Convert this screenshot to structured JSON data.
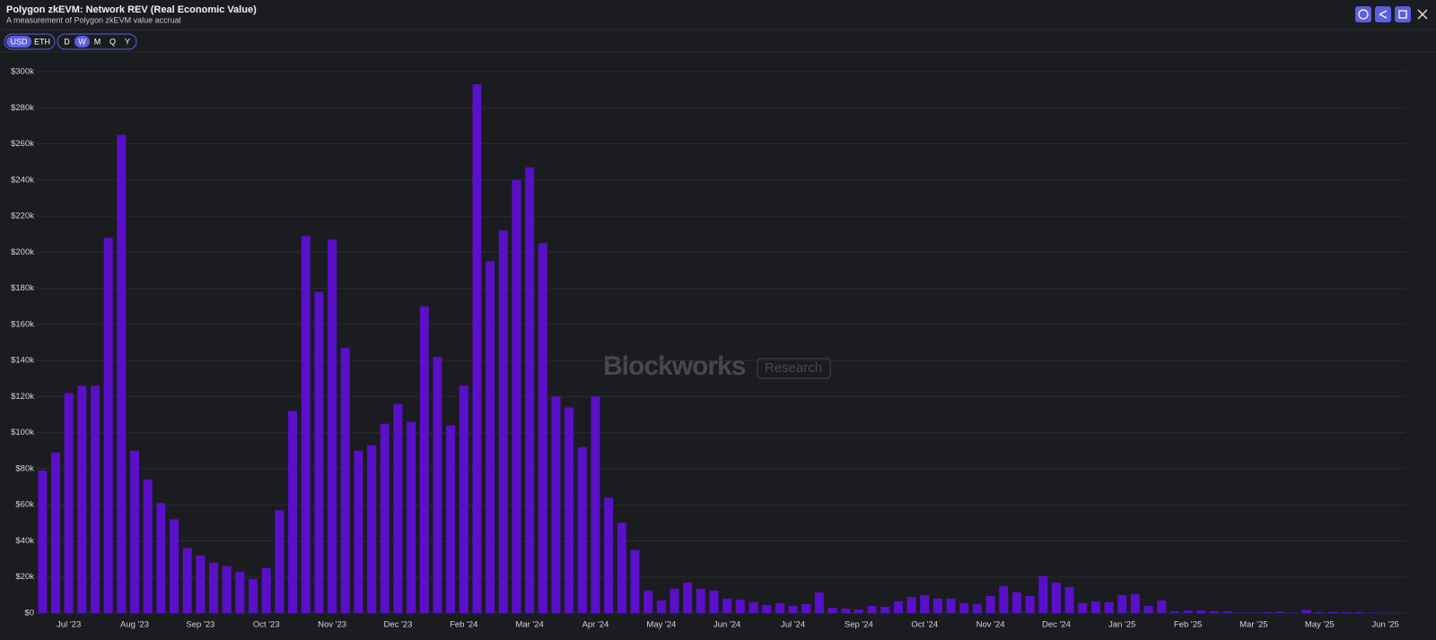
{
  "header": {
    "title": "Polygon zkEVM: Network REV (Real Economic Value)",
    "subtitle": "A measurement of Polygon zkEVM value accrual"
  },
  "controls": {
    "currency": [
      "USD",
      "ETH"
    ],
    "selected_currency": "USD",
    "intervals": [
      "D",
      "W",
      "M",
      "Q",
      "Y"
    ],
    "selected_interval": "W"
  },
  "watermark": {
    "brand": "Blockworks",
    "tag": "Research"
  },
  "chart_data": {
    "type": "bar",
    "color": "#5a0fc8",
    "grid": true,
    "categories": [
      null,
      null,
      "Jul '23",
      null,
      null,
      null,
      null,
      "Aug '23",
      null,
      null,
      null,
      null,
      "Sep '23",
      null,
      null,
      null,
      null,
      "Oct '23",
      null,
      null,
      null,
      null,
      "Nov '23",
      null,
      null,
      null,
      null,
      "Dec '23",
      null,
      null,
      null,
      null,
      "Feb '24",
      null,
      null,
      null,
      null,
      "Mar '24",
      null,
      null,
      null,
      null,
      "Apr '24",
      null,
      null,
      null,
      null,
      "May '24",
      null,
      null,
      null,
      null,
      "Jun '24",
      null,
      null,
      null,
      null,
      "Jul '24",
      null,
      null,
      null,
      null,
      "Sep '24",
      null,
      null,
      null,
      null,
      "Oct '24",
      null,
      null,
      null,
      null,
      "Nov '24",
      null,
      null,
      null,
      null,
      "Dec '24",
      null,
      null,
      null,
      null,
      "Jan '25",
      null,
      null,
      null,
      null,
      "Feb '25",
      null,
      null,
      null,
      null,
      "Mar '25",
      null,
      null,
      null,
      null,
      "May '25",
      null,
      null,
      null,
      null,
      "Jun '25"
    ],
    "values": [
      79000,
      89000,
      122000,
      126000,
      126000,
      208000,
      265000,
      90000,
      74000,
      61000,
      52000,
      36000,
      32000,
      28000,
      26000,
      23000,
      19000,
      25000,
      57000,
      112000,
      209000,
      178000,
      207000,
      147000,
      90000,
      93000,
      105000,
      116000,
      106000,
      170000,
      142000,
      104000,
      126000,
      293000,
      195000,
      212000,
      240000,
      247000,
      205000,
      120000,
      114000,
      92000,
      120000,
      64000,
      50000,
      35000,
      12500,
      7000,
      13500,
      17000,
      13500,
      12500,
      8000,
      7500,
      6000,
      4500,
      5500,
      4000,
      5000,
      11500,
      3000,
      2500,
      2000,
      4000,
      3500,
      6500,
      9000,
      10000,
      8000,
      8000,
      5500,
      5000,
      9500,
      15000,
      11500,
      9500,
      20500,
      17000,
      14500,
      5500,
      6500,
      6000,
      10000,
      10500,
      4000,
      7000,
      1000,
      1500,
      1500,
      1000,
      1000,
      300,
      300,
      500,
      800,
      300,
      1800,
      500,
      800,
      500,
      500,
      300,
      200
    ],
    "ylim": [
      0,
      300000
    ],
    "yticks": [
      {
        "value": 0,
        "label": "$0"
      },
      {
        "value": 20000,
        "label": "$20k"
      },
      {
        "value": 40000,
        "label": "$40k"
      },
      {
        "value": 60000,
        "label": "$60k"
      },
      {
        "value": 80000,
        "label": "$80k"
      },
      {
        "value": 100000,
        "label": "$100k"
      },
      {
        "value": 120000,
        "label": "$120k"
      },
      {
        "value": 140000,
        "label": "$140k"
      },
      {
        "value": 160000,
        "label": "$160k"
      },
      {
        "value": 180000,
        "label": "$180k"
      },
      {
        "value": 200000,
        "label": "$200k"
      },
      {
        "value": 220000,
        "label": "$220k"
      },
      {
        "value": 240000,
        "label": "$240k"
      },
      {
        "value": 260000,
        "label": "$260k"
      },
      {
        "value": 280000,
        "label": "$280k"
      },
      {
        "value": 300000,
        "label": "$300k"
      }
    ]
  }
}
